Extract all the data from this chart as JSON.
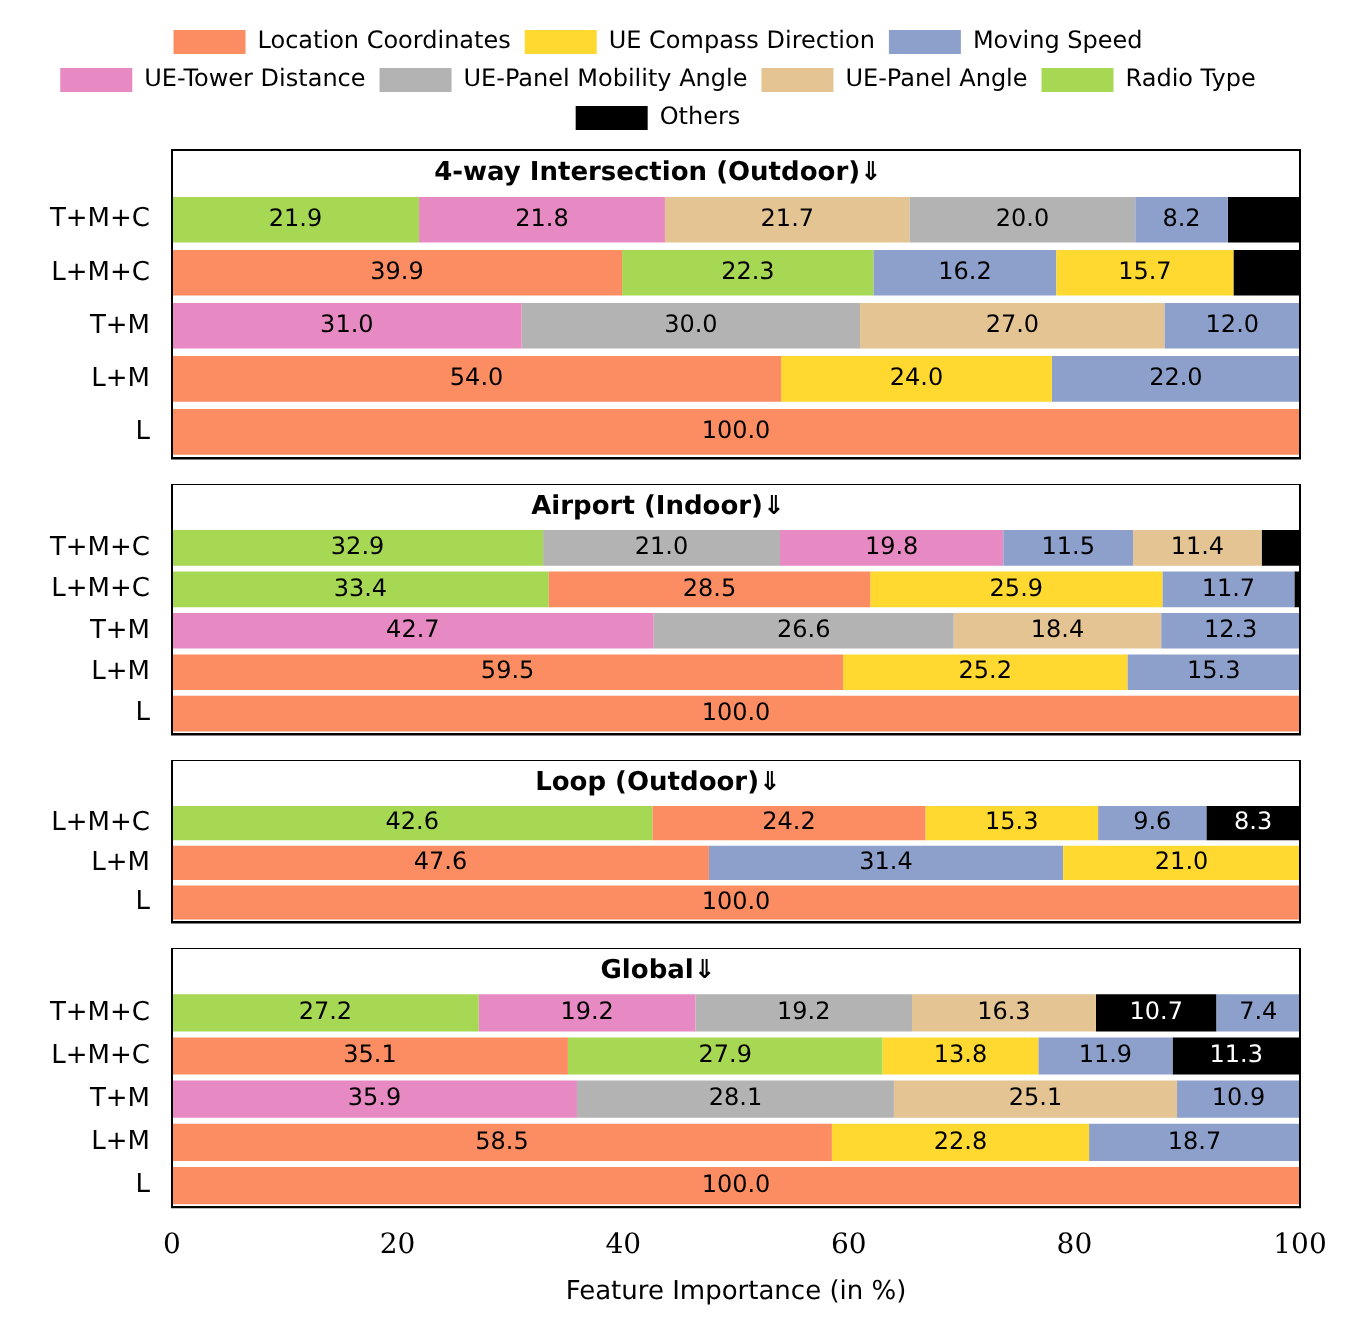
{
  "chart_data": [
    {
      "type": "bar",
      "orientation": "horizontal",
      "title": "4-way Intersection (Outdoor)⇓",
      "legend": "top",
      "tick_labels": "y",
      "xlim": [
        0,
        100
      ],
      "categories": [
        "T+M+C",
        "L+M+C",
        "T+M",
        "L+M",
        "L"
      ],
      "series": [
        {
          "name": "Location Coordinates",
          "color": "#fc8d62",
          "values": [
            null,
            39.9,
            null,
            54.0,
            100.0
          ],
          "base": [
            null,
            0,
            null,
            0,
            0
          ],
          "value_labels": [
            null,
            "39.9",
            null,
            "54.0",
            "100.0"
          ]
        },
        {
          "name": "UE Compass Direction",
          "color": "#ffd92f",
          "values": [
            null,
            15.7,
            null,
            24.0,
            null
          ],
          "base": [
            null,
            78.4,
            null,
            54.0,
            null
          ],
          "value_labels": [
            null,
            "15.7",
            null,
            "24.0",
            null
          ]
        },
        {
          "name": "Moving Speed",
          "color": "#8da0cb",
          "values": [
            8.2,
            16.2,
            12.0,
            22.0,
            null
          ],
          "base": [
            85.4,
            62.2,
            88.0,
            78.0,
            null
          ],
          "value_labels": [
            "8.2",
            "16.2",
            "12.0",
            "22.0",
            null
          ]
        },
        {
          "name": "UE-Tower Distance",
          "color": "#e78ac3",
          "values": [
            21.8,
            null,
            31.0,
            null,
            null
          ],
          "base": [
            21.9,
            null,
            0,
            null,
            null
          ],
          "value_labels": [
            "21.8",
            null,
            "31.0",
            null,
            null
          ]
        },
        {
          "name": "UE-Panel Mobility Angle",
          "color": "#b3b3b3",
          "values": [
            20.0,
            null,
            30.0,
            null,
            null
          ],
          "base": [
            65.4,
            null,
            31.0,
            null,
            null
          ],
          "value_labels": [
            "20.0",
            null,
            "30.0",
            null,
            null
          ]
        },
        {
          "name": "UE-Panel Angle",
          "color": "#e5c494",
          "values": [
            21.7,
            null,
            27.0,
            null,
            null
          ],
          "base": [
            43.7,
            null,
            61.0,
            null,
            null
          ],
          "value_labels": [
            "21.7",
            null,
            "27.0",
            null,
            null
          ]
        },
        {
          "name": "Radio Type",
          "color": "#a6d854",
          "values": [
            21.9,
            22.3,
            null,
            null,
            null
          ],
          "base": [
            0,
            39.9,
            null,
            null,
            null
          ],
          "value_labels": [
            "21.9",
            "22.3",
            null,
            null,
            null
          ]
        },
        {
          "name": "Others",
          "color": "#000000",
          "values": [
            6.4,
            5.9,
            null,
            null,
            null
          ],
          "base": [
            93.6,
            94.1,
            null,
            null,
            null
          ],
          "value_labels": [
            null,
            null,
            null,
            null,
            null
          ]
        }
      ]
    },
    {
      "type": "bar",
      "orientation": "horizontal",
      "title": "Airport (Indoor)⇓",
      "tick_labels": "y",
      "xlim": [
        0,
        100
      ],
      "categories": [
        "T+M+C",
        "L+M+C",
        "T+M",
        "L+M",
        "L"
      ],
      "series": [
        {
          "color": "#fc8d62",
          "values": [
            null,
            28.5,
            null,
            59.5,
            100.0
          ],
          "base": [
            null,
            33.4,
            null,
            0,
            0
          ],
          "value_labels": [
            null,
            "28.5",
            null,
            "59.5",
            "100.0"
          ]
        },
        {
          "color": "#ffd92f",
          "values": [
            null,
            25.9,
            null,
            25.2,
            null
          ],
          "base": [
            null,
            61.9,
            null,
            59.5,
            null
          ],
          "value_labels": [
            null,
            "25.9",
            null,
            "25.2",
            null
          ]
        },
        {
          "color": "#8da0cb",
          "values": [
            11.5,
            11.7,
            12.3,
            15.3,
            null
          ],
          "base": [
            73.7,
            87.8,
            87.7,
            84.7,
            null
          ],
          "value_labels": [
            "11.5",
            "11.7",
            "12.3",
            "15.3",
            null
          ]
        },
        {
          "color": "#e78ac3",
          "values": [
            19.8,
            null,
            42.7,
            null,
            null
          ],
          "base": [
            53.9,
            null,
            0,
            null,
            null
          ],
          "value_labels": [
            "19.8",
            null,
            "42.7",
            null,
            null
          ]
        },
        {
          "color": "#b3b3b3",
          "values": [
            21.0,
            null,
            26.6,
            null,
            null
          ],
          "base": [
            32.9,
            null,
            42.7,
            null,
            null
          ],
          "value_labels": [
            "21.0",
            null,
            "26.6",
            null,
            null
          ]
        },
        {
          "color": "#e5c494",
          "values": [
            11.4,
            null,
            18.4,
            null,
            null
          ],
          "base": [
            85.2,
            null,
            69.3,
            null,
            null
          ],
          "value_labels": [
            "11.4",
            null,
            "18.4",
            null,
            null
          ]
        },
        {
          "color": "#a6d854",
          "values": [
            32.9,
            33.4,
            null,
            null,
            null
          ],
          "base": [
            0,
            0,
            null,
            null,
            null
          ],
          "value_labels": [
            "32.9",
            "33.4",
            null,
            null,
            null
          ]
        },
        {
          "color": "#000000",
          "values": [
            3.4,
            0.5,
            null,
            null,
            null
          ],
          "base": [
            96.6,
            99.5,
            null,
            null,
            null
          ],
          "value_labels": [
            null,
            null,
            null,
            null,
            null
          ]
        }
      ]
    },
    {
      "type": "bar",
      "orientation": "horizontal",
      "title": "Loop (Outdoor)⇓",
      "tick_labels": "y",
      "xlim": [
        0,
        100
      ],
      "categories": [
        "L+M+C",
        "L+M",
        "L"
      ],
      "series": [
        {
          "color": "#fc8d62",
          "values": [
            24.2,
            47.6,
            100.0
          ],
          "base": [
            42.6,
            0,
            0
          ],
          "value_labels": [
            "24.2",
            "47.6",
            "100.0"
          ]
        },
        {
          "color": "#ffd92f",
          "values": [
            15.3,
            21.0,
            null
          ],
          "base": [
            66.8,
            79.0,
            null
          ],
          "value_labels": [
            "15.3",
            "21.0",
            null
          ]
        },
        {
          "color": "#8da0cb",
          "values": [
            9.6,
            31.4,
            null
          ],
          "base": [
            82.1,
            47.6,
            null
          ],
          "value_labels": [
            "9.6",
            "31.4",
            null
          ]
        },
        {
          "color": "#a6d854",
          "values": [
            42.6,
            null,
            null
          ],
          "base": [
            0,
            null,
            null
          ],
          "value_labels": [
            "42.6",
            null,
            null
          ]
        },
        {
          "color": "#000000",
          "values": [
            8.3,
            null,
            null
          ],
          "base": [
            91.7,
            null,
            null
          ],
          "value_labels": [
            "8.3",
            null,
            null
          ]
        }
      ]
    },
    {
      "type": "bar",
      "orientation": "horizontal",
      "title": "Global⇓",
      "xlabel": "Feature Importance (in %)",
      "xlim": [
        0,
        100
      ],
      "xticks": [
        0,
        20,
        40,
        60,
        80,
        100
      ],
      "categories": [
        "T+M+C",
        "L+M+C",
        "T+M",
        "L+M",
        "L"
      ],
      "series": [
        {
          "color": "#fc8d62",
          "values": [
            null,
            35.1,
            null,
            58.5,
            100.0
          ],
          "base": [
            null,
            0,
            null,
            0,
            0
          ],
          "value_labels": [
            null,
            "35.1",
            null,
            "58.5",
            "100.0"
          ]
        },
        {
          "color": "#ffd92f",
          "values": [
            null,
            13.8,
            null,
            22.8,
            null
          ],
          "base": [
            null,
            63.0,
            null,
            58.5,
            null
          ],
          "value_labels": [
            null,
            "13.8",
            null,
            "22.8",
            null
          ]
        },
        {
          "color": "#8da0cb",
          "values": [
            7.4,
            11.9,
            10.9,
            18.7,
            null
          ],
          "base": [
            92.6,
            76.8,
            89.1,
            81.3,
            null
          ],
          "value_labels": [
            "7.4",
            "11.9",
            "10.9",
            "18.7",
            null
          ]
        },
        {
          "color": "#e78ac3",
          "values": [
            19.2,
            null,
            35.9,
            null,
            null
          ],
          "base": [
            27.2,
            null,
            0,
            null,
            null
          ],
          "value_labels": [
            "19.2",
            null,
            "35.9",
            null,
            null
          ]
        },
        {
          "color": "#b3b3b3",
          "values": [
            19.2,
            null,
            28.1,
            null,
            null
          ],
          "base": [
            46.4,
            null,
            35.9,
            null,
            null
          ],
          "value_labels": [
            "19.2",
            null,
            "28.1",
            null,
            null
          ]
        },
        {
          "color": "#e5c494",
          "values": [
            16.3,
            null,
            25.1,
            null,
            null
          ],
          "base": [
            65.6,
            null,
            64.0,
            null,
            null
          ],
          "value_labels": [
            "16.3",
            null,
            "25.1",
            null,
            null
          ]
        },
        {
          "color": "#a6d854",
          "values": [
            27.2,
            27.9,
            null,
            null,
            null
          ],
          "base": [
            0,
            35.1,
            null,
            null,
            null
          ],
          "value_labels": [
            "27.2",
            "27.9",
            null,
            null,
            null
          ]
        },
        {
          "color": "#000000",
          "values": [
            10.7,
            11.3,
            null,
            null,
            null
          ],
          "base": [
            81.9,
            88.7,
            null,
            null,
            null
          ],
          "value_labels": [
            "10.7",
            "11.3",
            null,
            null,
            null
          ]
        }
      ]
    }
  ]
}
